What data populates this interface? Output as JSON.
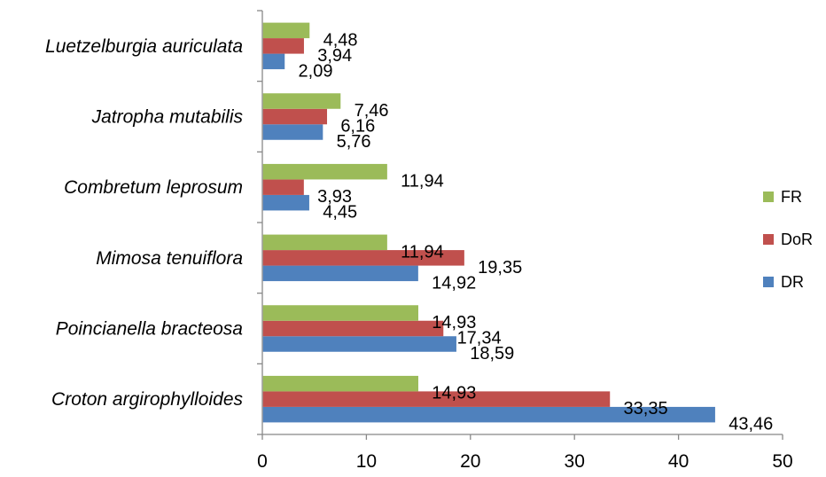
{
  "chart_data": {
    "type": "bar",
    "orientation": "horizontal",
    "categories": [
      "Croton argirophylloides",
      "Poincianella bracteosa",
      "Mimosa tenuiflora",
      "Combretum leprosum",
      "Jatropha mutabilis",
      "Luetzelburgia auriculata"
    ],
    "series": [
      {
        "name": "DR",
        "color": "#4F81BD",
        "values": [
          43.46,
          18.59,
          14.92,
          4.45,
          5.76,
          2.09
        ],
        "labels": [
          "43,46",
          "18,59",
          "14,92",
          "4,45",
          "5,76",
          "2,09"
        ]
      },
      {
        "name": "DoR",
        "color": "#C0504D",
        "values": [
          33.35,
          17.34,
          19.35,
          3.93,
          6.16,
          3.94
        ],
        "labels": [
          "33,35",
          "17,34",
          "19,35",
          "3,93",
          "6,16",
          "3,94"
        ]
      },
      {
        "name": "FR",
        "color": "#9BBB59",
        "values": [
          14.93,
          14.93,
          11.94,
          11.94,
          7.46,
          4.48
        ],
        "labels": [
          "14,93",
          "14,93",
          "11,94",
          "11,94",
          "7,46",
          "4,48"
        ]
      }
    ],
    "legend_order": [
      "FR",
      "DoR",
      "DR"
    ],
    "xlim": [
      0,
      50
    ],
    "xticks": [
      "0",
      "10",
      "20",
      "30",
      "40",
      "50"
    ],
    "grid": false,
    "legend_position": "right",
    "title": "",
    "xlabel": "",
    "ylabel": ""
  }
}
